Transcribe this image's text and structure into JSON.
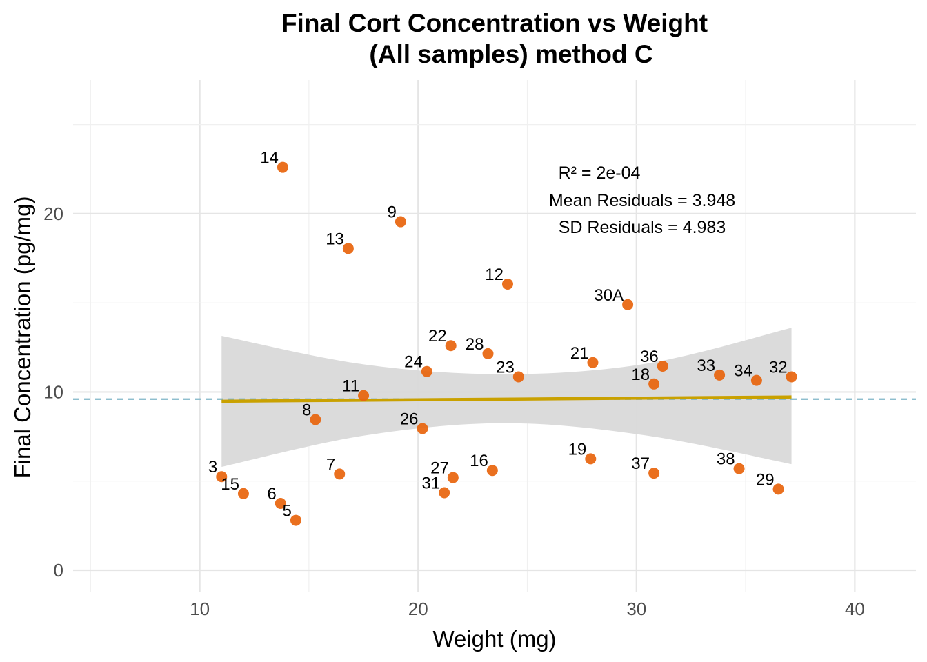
{
  "chart_data": {
    "type": "scatter",
    "title_line1": "Final Cort Concentration vs Weight",
    "title_line2": "(All samples) method C",
    "xlabel": "Weight (mg)",
    "ylabel": "Final Concentration (pg/mg)",
    "xlim": [
      4.2,
      42.8
    ],
    "ylim": [
      -1.2,
      27.5
    ],
    "x_ticks": [
      10,
      20,
      30,
      40
    ],
    "y_ticks": [
      0,
      10,
      20
    ],
    "x_tick_labels": [
      "10",
      "20",
      "30",
      "40"
    ],
    "y_tick_labels": [
      "0",
      "10",
      "20"
    ],
    "grid": true,
    "point_color": "#e8640c",
    "fit_line_color": "#c9a100",
    "confidence_band_color": "#d9d9d9",
    "reference_line_color": "#7fb5c8",
    "reference_line_y": 9.6,
    "fit_line": {
      "x": [
        11.0,
        37.1
      ],
      "y": [
        9.48,
        9.72
      ]
    },
    "confidence_band": {
      "x": [
        11.0,
        17.5,
        24.0,
        30.5,
        37.1
      ],
      "upper": [
        13.15,
        11.55,
        11.0,
        11.6,
        13.6
      ],
      "lower": [
        5.8,
        7.55,
        8.25,
        7.55,
        5.95
      ]
    },
    "annotations": [
      "R² = 2e-04",
      "Mean Residuals = 3.948",
      "SD Residuals = 4.983"
    ],
    "points": [
      {
        "label": "3",
        "x": 11.0,
        "y": 5.25
      },
      {
        "label": "15",
        "x": 12.0,
        "y": 4.3
      },
      {
        "label": "6",
        "x": 13.7,
        "y": 3.75
      },
      {
        "label": "5",
        "x": 14.4,
        "y": 2.8
      },
      {
        "label": "14",
        "x": 13.8,
        "y": 22.6
      },
      {
        "label": "8",
        "x": 15.3,
        "y": 8.45
      },
      {
        "label": "13",
        "x": 16.8,
        "y": 18.05
      },
      {
        "label": "7",
        "x": 16.4,
        "y": 5.4
      },
      {
        "label": "11",
        "x": 17.5,
        "y": 9.8
      },
      {
        "label": "9",
        "x": 19.2,
        "y": 19.55
      },
      {
        "label": "26",
        "x": 20.2,
        "y": 7.95
      },
      {
        "label": "24",
        "x": 20.4,
        "y": 11.15
      },
      {
        "label": "22",
        "x": 21.5,
        "y": 12.6
      },
      {
        "label": "27",
        "x": 21.6,
        "y": 5.2
      },
      {
        "label": "31",
        "x": 21.2,
        "y": 4.35
      },
      {
        "label": "28",
        "x": 23.2,
        "y": 12.15
      },
      {
        "label": "16",
        "x": 23.4,
        "y": 5.6
      },
      {
        "label": "12",
        "x": 24.1,
        "y": 16.05
      },
      {
        "label": "23",
        "x": 24.6,
        "y": 10.85
      },
      {
        "label": "19",
        "x": 27.9,
        "y": 6.25
      },
      {
        "label": "21",
        "x": 28.0,
        "y": 11.65
      },
      {
        "label": "30A",
        "x": 29.6,
        "y": 14.9
      },
      {
        "label": "18",
        "x": 30.8,
        "y": 10.45
      },
      {
        "label": "37",
        "x": 30.8,
        "y": 5.45
      },
      {
        "label": "36",
        "x": 31.2,
        "y": 11.45
      },
      {
        "label": "33",
        "x": 33.8,
        "y": 10.95
      },
      {
        "label": "38",
        "x": 34.7,
        "y": 5.7
      },
      {
        "label": "34",
        "x": 35.5,
        "y": 10.65
      },
      {
        "label": "29",
        "x": 36.5,
        "y": 4.55
      },
      {
        "label": "32",
        "x": 37.1,
        "y": 10.85
      }
    ]
  }
}
